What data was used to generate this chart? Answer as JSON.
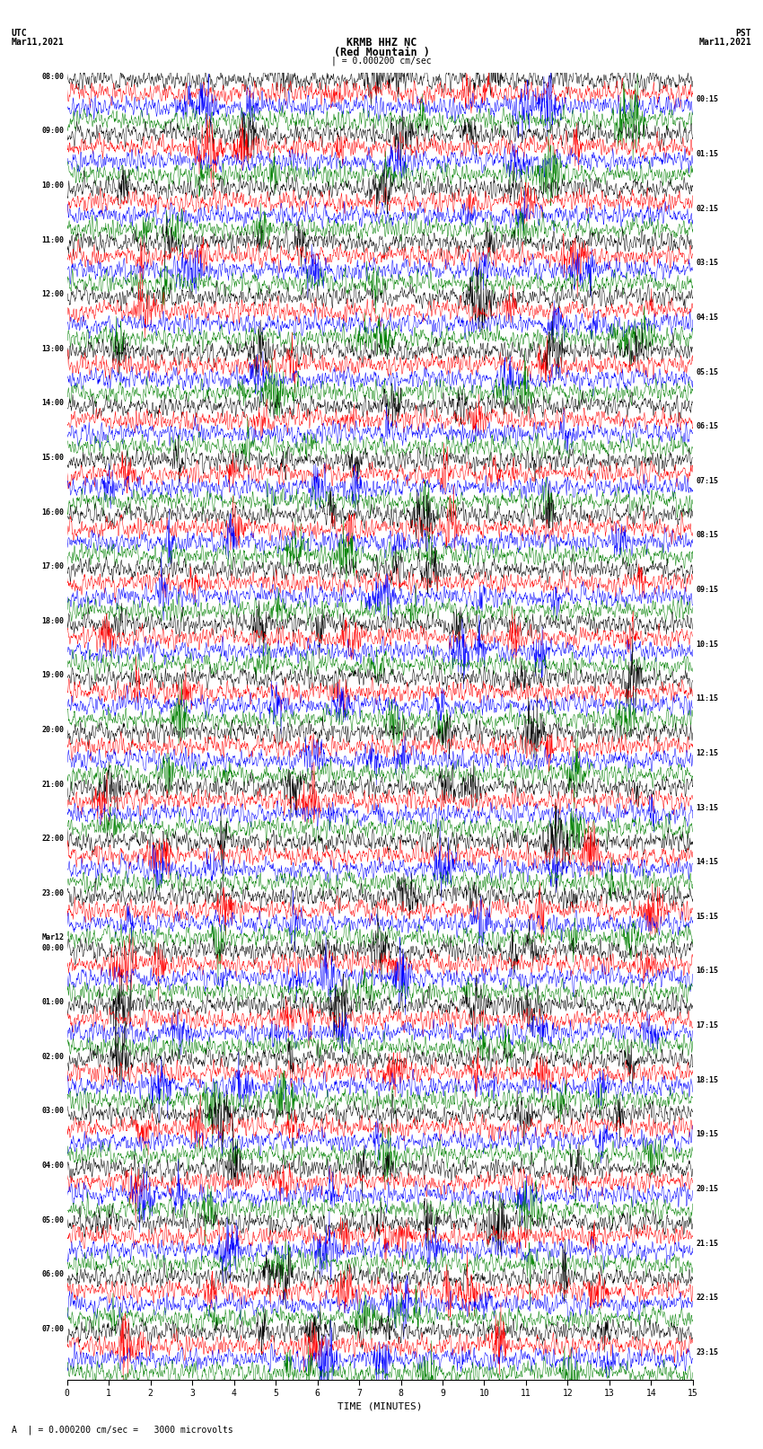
{
  "title_line1": "KRMB HHZ NC",
  "title_line2": "(Red Mountain )",
  "scale_bar": "| = 0.000200 cm/sec",
  "left_label_date": "UTC\nMar11,2021",
  "right_label_date": "PST\nMar11,2021",
  "bottom_label": "TIME (MINUTES)",
  "footer_text": "A  | = 0.000200 cm/sec =   3000 microvolts",
  "left_times": [
    "08:00",
    "09:00",
    "10:00",
    "11:00",
    "12:00",
    "13:00",
    "14:00",
    "15:00",
    "16:00",
    "17:00",
    "18:00",
    "19:00",
    "20:00",
    "21:00",
    "22:00",
    "23:00",
    "Mar12\n00:00",
    "01:00",
    "02:00",
    "03:00",
    "04:00",
    "05:00",
    "06:00",
    "07:00"
  ],
  "right_times": [
    "00:15",
    "01:15",
    "02:15",
    "03:15",
    "04:15",
    "05:15",
    "06:15",
    "07:15",
    "08:15",
    "09:15",
    "10:15",
    "11:15",
    "12:15",
    "13:15",
    "14:15",
    "15:15",
    "16:15",
    "17:15",
    "18:15",
    "19:15",
    "20:15",
    "21:15",
    "22:15",
    "23:15"
  ],
  "colors": [
    "black",
    "red",
    "blue",
    "green"
  ],
  "bg_color": "white",
  "n_rows": 24,
  "n_traces_per_row": 4,
  "x_ticks": [
    0,
    1,
    2,
    3,
    4,
    5,
    6,
    7,
    8,
    9,
    10,
    11,
    12,
    13,
    14,
    15
  ],
  "xlim": [
    0,
    15
  ],
  "fig_width": 8.5,
  "fig_height": 16.13,
  "dpi": 100
}
